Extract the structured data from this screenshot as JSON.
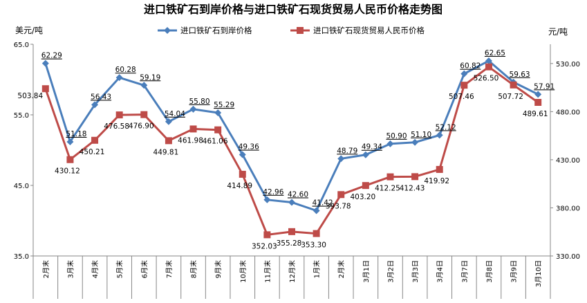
{
  "chart_data": {
    "type": "line",
    "title": "进口铁矿石到岸价格与进口铁矿石现货贸易人民币价格走势图",
    "ylabel_left": "美元/吨",
    "ylabel_right": "元/吨",
    "categories": [
      "2月末",
      "3月末",
      "4月末",
      "5月末",
      "6月末",
      "7月末",
      "8月末",
      "9月末",
      "10月末",
      "11月末",
      "12月末",
      "1月末",
      "2月末",
      "3月1日",
      "3月2日",
      "3月3日",
      "3月4日",
      "3月7日",
      "3月8日",
      "3月9日",
      "3月10日"
    ],
    "ylim_left": [
      35,
      65
    ],
    "yticks_left": [
      "35.0",
      "45.0",
      "55.0",
      "65.0"
    ],
    "ylim_right": [
      330,
      550
    ],
    "yticks_right": [
      "330.00",
      "380.00",
      "430.00",
      "480.00",
      "530.00"
    ],
    "legend_position": "top",
    "series": [
      {
        "name": "进口铁矿石到岸价格",
        "axis": "left",
        "color": "#4a7ebb",
        "marker": "diamond",
        "values": [
          62.29,
          51.18,
          56.43,
          60.28,
          59.19,
          54.04,
          55.8,
          55.29,
          49.36,
          42.96,
          42.6,
          41.42,
          48.79,
          49.34,
          50.9,
          51.1,
          52.12,
          60.82,
          62.65,
          59.63,
          57.91
        ],
        "labels": [
          "62.29",
          "51.18",
          "56.43",
          "60.28",
          "59.19",
          "54.04",
          "55.80",
          "55.29",
          "49.36",
          "42.96",
          "42.60",
          "41.42",
          "48.79",
          "49.34",
          "50.90",
          "51.10",
          "52.12",
          "60.82",
          "62.65",
          "59.63",
          "57.91"
        ]
      },
      {
        "name": "进口铁矿石现货贸易人民币价格",
        "axis": "right",
        "color": "#be4b48",
        "marker": "square",
        "values": [
          503.84,
          430.12,
          450.21,
          476.58,
          476.9,
          449.81,
          461.98,
          461.06,
          414.89,
          352.03,
          355.28,
          353.3,
          393.78,
          403.2,
          412.25,
          412.43,
          419.92,
          507.46,
          526.5,
          507.72,
          489.61
        ],
        "labels": [
          "503.84",
          "430.12",
          "450.21",
          "476.58",
          "476.90",
          "449.81",
          "461.98",
          "461.06",
          "414.89",
          "352.03",
          "355.28",
          "353.30",
          "393.78",
          "403.20",
          "412.25",
          "412.43",
          "419.92",
          "507.46",
          "526.50",
          "507.72",
          "489.61"
        ]
      }
    ]
  }
}
